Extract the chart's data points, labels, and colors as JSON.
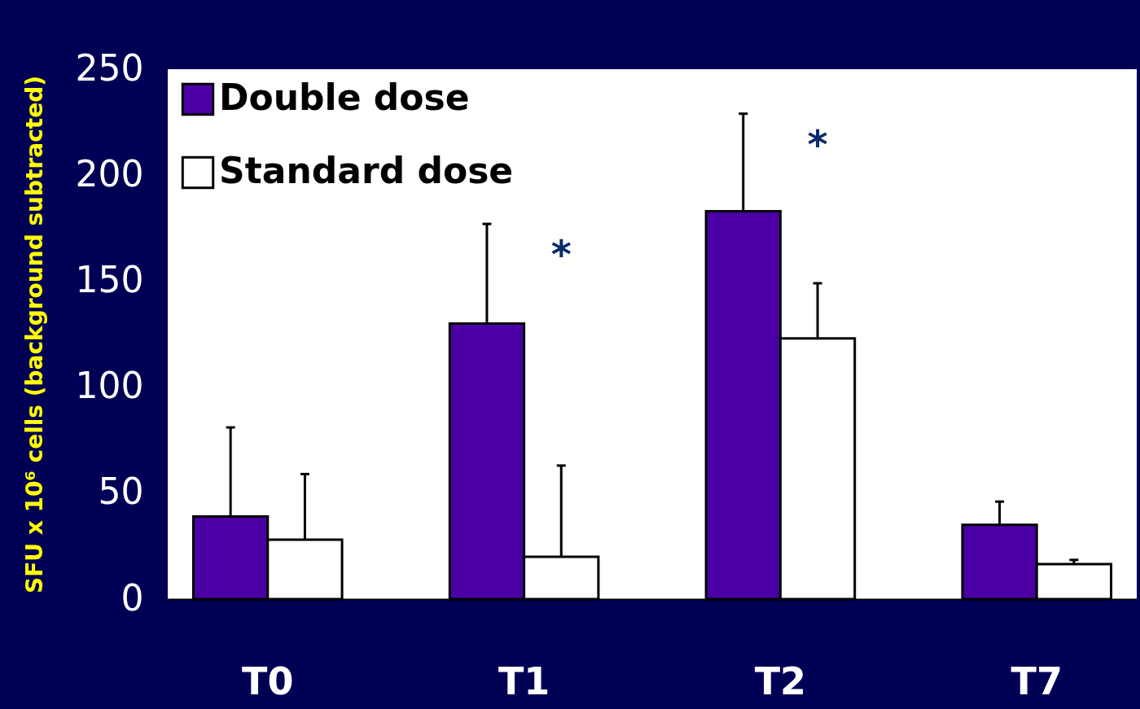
{
  "chart_data": {
    "type": "bar",
    "ylabel": "SFU x 10⁶ cells (background subtracted)",
    "categories": [
      "T0",
      "T1",
      "T2",
      "T7"
    ],
    "series": [
      {
        "name": "Double dose",
        "color": "#4b00a6",
        "values": [
          39,
          130,
          183,
          35
        ],
        "errors": [
          [
            39,
            81
          ],
          [
            130,
            177
          ],
          [
            183,
            229
          ],
          [
            35,
            46
          ]
        ]
      },
      {
        "name": "Standard dose",
        "color": "#ffffff",
        "values": [
          28,
          20,
          123,
          16.5
        ],
        "errors": [
          [
            28,
            59
          ],
          [
            20,
            63
          ],
          [
            123,
            149
          ],
          [
            16.5,
            18.5
          ]
        ]
      }
    ],
    "ylim": [
      0,
      250
    ],
    "yticks": [
      0,
      50,
      100,
      150,
      200,
      250
    ],
    "grid": false,
    "legend": "top left",
    "annotations": [
      "*",
      "*"
    ]
  }
}
